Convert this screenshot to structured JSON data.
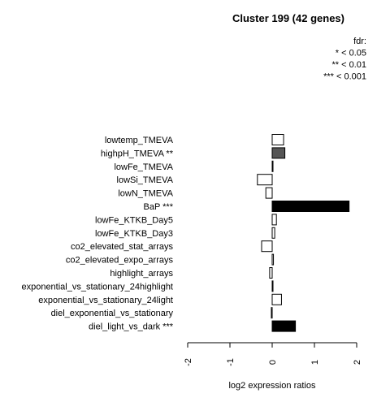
{
  "chart_data": {
    "type": "bar",
    "orientation": "horizontal",
    "title": "Cluster 199 (42 genes)",
    "xlabel": "log2 expression ratios",
    "ylabel": "",
    "xlim": [
      -2,
      2
    ],
    "xticks": [
      "-2",
      "-1",
      "0",
      "1",
      "2"
    ],
    "legend": {
      "position": "top-right",
      "title": "fdr:",
      "entries": [
        "* < 0.05",
        "** < 0.01",
        "*** < 0.001"
      ]
    },
    "categories": [
      "lowtemp_TMEVA",
      "highpH_TMEVA **",
      "lowFe_TMEVA",
      "lowSi_TMEVA",
      "lowN_TMEVA",
      "BaP ***",
      "lowFe_KTKB_Day5",
      "lowFe_KTKB_Day3",
      "co2_elevated_stat_arrays",
      "co2_elevated_expo_arrays",
      "highlight_arrays",
      "exponential_vs_stationary_24highlight",
      "exponential_vs_stationary_24light",
      "diel_exponential_vs_stationary",
      "diel_light_vs_dark ***"
    ],
    "values": [
      0.27,
      0.3,
      0.01,
      -0.35,
      -0.15,
      1.82,
      0.1,
      0.06,
      -0.25,
      0.03,
      -0.06,
      0.01,
      0.22,
      -0.02,
      0.55
    ],
    "fills": [
      "#ffffff",
      "#555555",
      "#ffffff",
      "#ffffff",
      "#ffffff",
      "#000000",
      "#ffffff",
      "#ffffff",
      "#ffffff",
      "#ffffff",
      "#ffffff",
      "#ffffff",
      "#ffffff",
      "#ffffff",
      "#000000"
    ]
  }
}
